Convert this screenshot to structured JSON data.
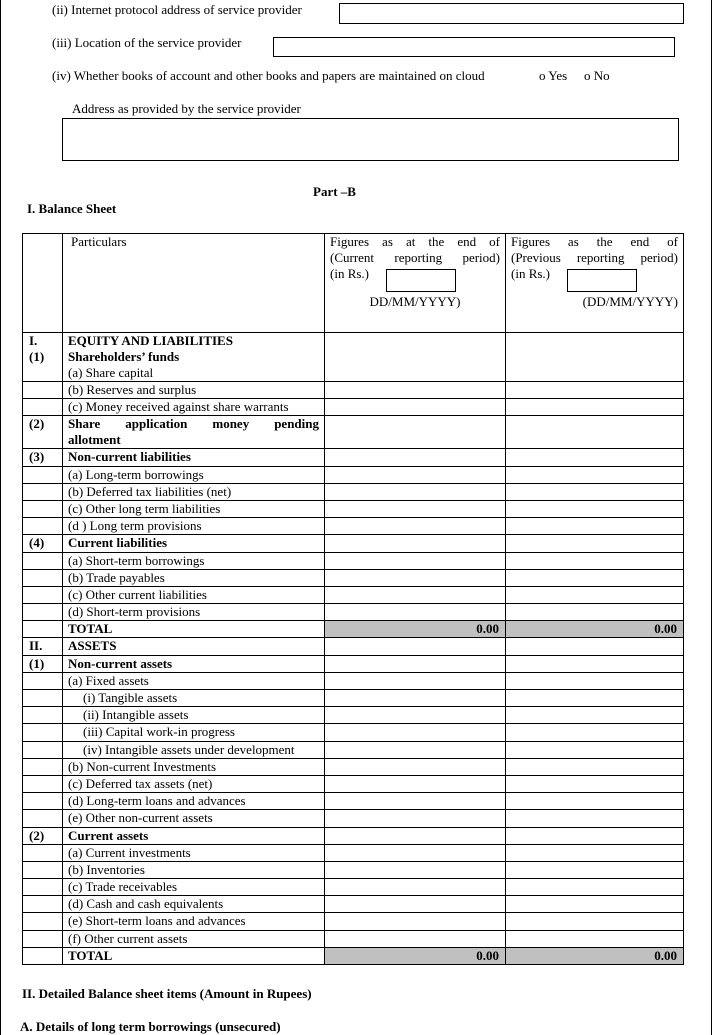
{
  "cloud": {
    "ip_label": "(ii) Internet protocol address of service provider",
    "ip_value": "",
    "location_label": "(iii) Location of the service provider",
    "location_value": "",
    "books_question": "(iv) Whether books of account and other books and papers are maintained on cloud",
    "yes_label": "o Yes",
    "no_label": "o No",
    "address_label": "Address as provided by the service provider",
    "address_value": ""
  },
  "part_title": "Part –B",
  "section_title": "I. Balance Sheet",
  "table": {
    "headers": {
      "particulars": "Particulars",
      "current_line1": "Figures as at the end of",
      "current_line2": "(Current reporting period)",
      "current_line3": "(in Rs.)",
      "current_date": "DD/MM/YYYY)",
      "previous_line1": "Figures as the end of",
      "previous_line2": "(Previous reporting period)",
      "previous_line3": "(in Rs.)",
      "previous_date": "(DD/MM/YYYY)"
    },
    "rows": [
      {
        "no": "I.",
        "no2": "(1)",
        "text": "EQUITY AND LIABILITIES",
        "text2": "Shareholders’ funds",
        "text3": "(a)  Share capital"
      },
      {
        "no": "",
        "text": "(b) Reserves and surplus"
      },
      {
        "no": "",
        "text": "(c) Money received against share warrants"
      },
      {
        "no": "(2)",
        "text": "Share application money pending",
        "text2": "allotment"
      },
      {
        "no": "(3)",
        "text": "Non-current liabilities"
      },
      {
        "no": "",
        "text": "(a)  Long-term borrowings"
      },
      {
        "no": "",
        "text": "(b)  Deferred tax liabilities (net)"
      },
      {
        "no": "",
        "text": "(c)  Other long term liabilities"
      },
      {
        "no": "",
        "text": "(d ) Long term provisions"
      },
      {
        "no": "(4)",
        "text": "Current liabilities"
      },
      {
        "no": "",
        "text": "(a)  Short-term borrowings"
      },
      {
        "no": "",
        "text": "(b)  Trade payables"
      },
      {
        "no": "",
        "text": "(c)   Other current liabilities"
      },
      {
        "no": "",
        "text": "(d)   Short-term provisions"
      },
      {
        "no": "",
        "text": "TOTAL",
        "current": "0.00",
        "previous": "0.00"
      },
      {
        "no": "II.",
        "text": "ASSETS"
      },
      {
        "no": "(1)",
        "text": "Non-current assets"
      },
      {
        "no": "",
        "text": "(a) Fixed assets"
      },
      {
        "no": "",
        "text": "(i) Tangible assets"
      },
      {
        "no": "",
        "text": "(ii) Intangible assets"
      },
      {
        "no": "",
        "text": "(iii) Capital work-in progress"
      },
      {
        "no": "",
        "text": "(iv) Intangible assets under development"
      },
      {
        "no": "",
        "text": "(b) Non-current Investments"
      },
      {
        "no": "",
        "text": "(c) Deferred tax assets (net)"
      },
      {
        "no": "",
        "text": "(d) Long-term loans and advances"
      },
      {
        "no": "",
        "text": "(e) Other non-current assets"
      },
      {
        "no": "(2)",
        "text": "Current assets"
      },
      {
        "no": "",
        "text": "(a) Current investments"
      },
      {
        "no": "",
        "text": "(b) Inventories"
      },
      {
        "no": "",
        "text": "(c) Trade receivables"
      },
      {
        "no": "",
        "text": "(d) Cash and cash equivalents"
      },
      {
        "no": "",
        "text": "(e) Short-term loans and advances"
      },
      {
        "no": "",
        "text": "(f) Other current assets"
      },
      {
        "no": "",
        "text": "TOTAL",
        "current": "0.00",
        "previous": "0.00"
      }
    ]
  },
  "section2_title": "II. Detailed Balance sheet items (Amount in Rupees)",
  "section2a_title": "A.  Details of long term borrowings (unsecured)",
  "colors": {
    "total_fill": "#c0c0c0"
  }
}
